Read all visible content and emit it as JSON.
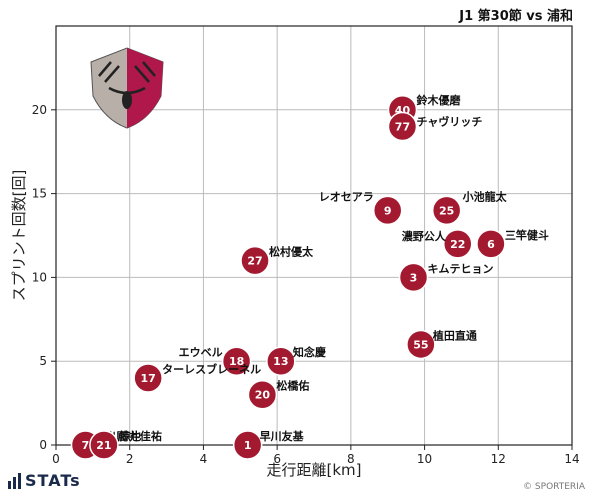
{
  "header": {
    "title": "J1 第30節 vs 浦和"
  },
  "footer": {
    "brand": "STATs",
    "copyright": "© SPORTERIA"
  },
  "colors": {
    "marker": "#a3192f",
    "grid": "#bbbbbb",
    "marker_edge": "#ffffff"
  },
  "chart_data": {
    "type": "scatter",
    "title": "J1 第30節 vs 浦和",
    "xlabel": "走行距離[km]",
    "ylabel": "スプリント回数[回]",
    "xlim": [
      0,
      14
    ],
    "ylim": [
      0,
      25
    ],
    "xticks": [
      0,
      2,
      4,
      6,
      8,
      10,
      12,
      14
    ],
    "yticks": [
      0,
      5,
      10,
      15,
      20
    ],
    "grid": true,
    "points": [
      {
        "number": "40",
        "name": "鈴木優磨",
        "x": 9.4,
        "y": 20
      },
      {
        "number": "77",
        "name": "チャヴリッチ",
        "x": 9.4,
        "y": 19
      },
      {
        "number": "9",
        "name": "レオセアラ",
        "x": 9.0,
        "y": 14
      },
      {
        "number": "25",
        "name": "小池龍太",
        "x": 10.6,
        "y": 14
      },
      {
        "number": "22",
        "name": "濃野公人",
        "x": 10.9,
        "y": 12
      },
      {
        "number": "6",
        "name": "三竿健斗",
        "x": 11.8,
        "y": 12
      },
      {
        "number": "3",
        "name": "キムテヒョン",
        "x": 9.7,
        "y": 10
      },
      {
        "number": "27",
        "name": "松村優太",
        "x": 5.4,
        "y": 11
      },
      {
        "number": "55",
        "name": "植田直通",
        "x": 9.9,
        "y": 6
      },
      {
        "number": "18",
        "name": "エウベル",
        "x": 4.9,
        "y": 5
      },
      {
        "number": "13",
        "name": "知念慶",
        "x": 6.1,
        "y": 5
      },
      {
        "number": "17",
        "name": "ターレスブレーネル",
        "x": 2.5,
        "y": 4
      },
      {
        "number": "20",
        "name": "松橋佑",
        "x": 5.6,
        "y": 3
      },
      {
        "number": "1",
        "name": "早川友基",
        "x": 5.2,
        "y": 0
      },
      {
        "number": "7",
        "name": "小川諒也",
        "x": 0.8,
        "y": 0
      },
      {
        "number": "21",
        "name": "藤井佳祐",
        "x": 1.3,
        "y": 0
      }
    ]
  }
}
